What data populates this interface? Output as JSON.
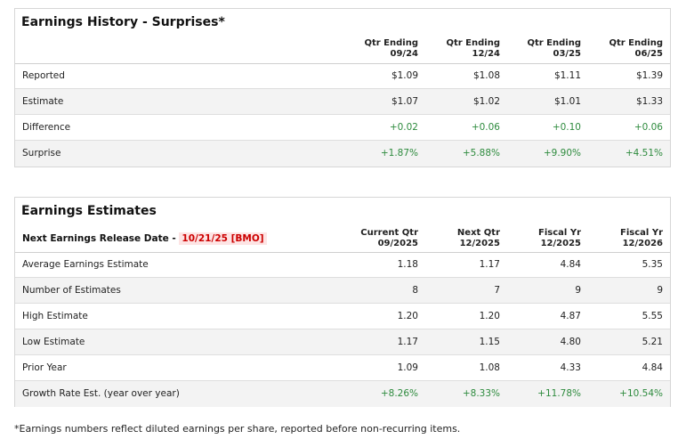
{
  "history": {
    "title": "Earnings History - Surprises*",
    "columns": [
      {
        "line1": "Qtr Ending",
        "line2": "09/24"
      },
      {
        "line1": "Qtr Ending",
        "line2": "12/24"
      },
      {
        "line1": "Qtr Ending",
        "line2": "03/25"
      },
      {
        "line1": "Qtr Ending",
        "line2": "06/25"
      }
    ],
    "rows": [
      {
        "label": "Reported",
        "values": [
          "$1.09",
          "$1.08",
          "$1.11",
          "$1.39"
        ]
      },
      {
        "label": "Estimate",
        "values": [
          "$1.07",
          "$1.02",
          "$1.01",
          "$1.33"
        ]
      },
      {
        "label": "Difference",
        "values": [
          "+0.02",
          "+0.06",
          "+0.10",
          "+0.06"
        ]
      },
      {
        "label": "Surprise",
        "values": [
          "+1.87%",
          "+5.88%",
          "+9.90%",
          "+4.51%"
        ]
      }
    ]
  },
  "estimates": {
    "title": "Earnings Estimates",
    "release_label": "Next Earnings Release Date - ",
    "release_date": "10/21/25 [BMO]",
    "columns": [
      {
        "line1": "Current Qtr",
        "line2": "09/2025"
      },
      {
        "line1": "Next Qtr",
        "line2": "12/2025"
      },
      {
        "line1": "Fiscal Yr",
        "line2": "12/2025"
      },
      {
        "line1": "Fiscal Yr",
        "line2": "12/2026"
      }
    ],
    "rows": [
      {
        "label": "Average Earnings Estimate",
        "values": [
          "1.18",
          "1.17",
          "4.84",
          "5.35"
        ]
      },
      {
        "label": "Number of Estimates",
        "values": [
          "8",
          "7",
          "9",
          "9"
        ]
      },
      {
        "label": "High Estimate",
        "values": [
          "1.20",
          "1.20",
          "4.87",
          "5.55"
        ]
      },
      {
        "label": "Low Estimate",
        "values": [
          "1.17",
          "1.15",
          "4.80",
          "5.21"
        ]
      },
      {
        "label": "Prior Year",
        "values": [
          "1.09",
          "1.08",
          "4.33",
          "4.84"
        ]
      },
      {
        "label": "Growth Rate Est. (year over year)",
        "values": [
          "+8.26%",
          "+8.33%",
          "+11.78%",
          "+10.54%"
        ]
      }
    ]
  },
  "footnote": "*Earnings numbers reflect diluted earnings per share, reported before non-recurring items.",
  "colors": {
    "positive": "#2e8b3e",
    "highlight": "#c00000"
  }
}
